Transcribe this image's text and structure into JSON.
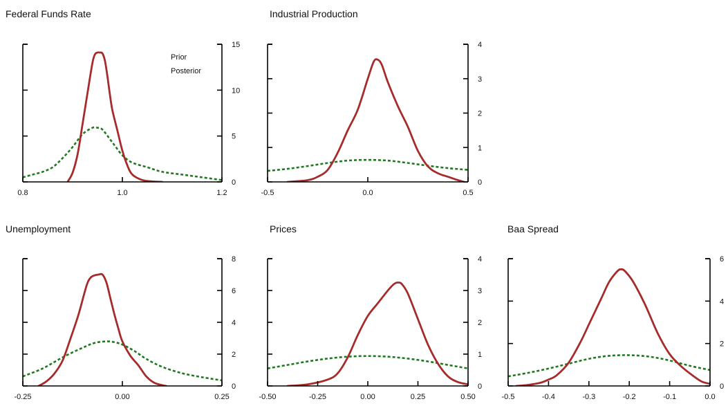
{
  "colors": {
    "prior": "#1f7a1f",
    "posterior": "#a62b2b",
    "axis": "#000000"
  },
  "legend": {
    "prior": "Prior",
    "posterior": "Posterior"
  },
  "chart_data": [
    {
      "type": "line",
      "title": "Federal Funds Rate",
      "xlim": [
        0.8,
        1.2
      ],
      "ylim": [
        0,
        15
      ],
      "xticks": [
        0.8,
        1.0,
        1.2
      ],
      "xtick_labels": [
        "0.8",
        "1.0",
        "1.2"
      ],
      "yticks": [
        0,
        5,
        10,
        15
      ],
      "ytick_labels": [
        "0",
        "5",
        "10",
        "15"
      ],
      "legend": "top-right",
      "series": [
        {
          "name": "Prior",
          "style": "dashed",
          "x": [
            0.8,
            0.82,
            0.84,
            0.86,
            0.88,
            0.9,
            0.92,
            0.94,
            0.95,
            0.96,
            0.98,
            1.0,
            1.02,
            1.05,
            1.08,
            1.12,
            1.16,
            1.2
          ],
          "y": [
            0.5,
            0.8,
            1.1,
            1.6,
            2.6,
            3.8,
            5.2,
            5.9,
            5.9,
            5.7,
            4.3,
            2.9,
            2.1,
            1.6,
            1.1,
            0.8,
            0.5,
            0.2
          ]
        },
        {
          "name": "Posterior",
          "style": "solid",
          "x": [
            0.89,
            0.9,
            0.91,
            0.92,
            0.93,
            0.94,
            0.945,
            0.95,
            0.955,
            0.96,
            0.965,
            0.97,
            0.975,
            0.98,
            0.99,
            1.0,
            1.01,
            1.02,
            1.04,
            1.06,
            1.08
          ],
          "y": [
            0.0,
            1.0,
            3.0,
            6.3,
            9.7,
            13.0,
            13.9,
            14.1,
            14.1,
            14.0,
            13.2,
            11.5,
            9.5,
            7.8,
            5.6,
            3.4,
            1.8,
            0.8,
            0.2,
            0.05,
            0.0
          ]
        }
      ]
    },
    {
      "type": "line",
      "title": "Industrial Production",
      "xlim": [
        -0.5,
        0.5
      ],
      "ylim": [
        0,
        4
      ],
      "xticks": [
        -0.5,
        0.0,
        0.5
      ],
      "xtick_labels": [
        "-0.5",
        "0.0",
        "0.5"
      ],
      "yticks": [
        0,
        1,
        2,
        3,
        4
      ],
      "ytick_labels": [
        "0",
        "1",
        "2",
        "3",
        "4"
      ],
      "series": [
        {
          "name": "Prior",
          "style": "dashed",
          "x": [
            -0.5,
            -0.4,
            -0.3,
            -0.2,
            -0.1,
            0.0,
            0.1,
            0.2,
            0.3,
            0.4,
            0.5
          ],
          "y": [
            0.32,
            0.38,
            0.46,
            0.55,
            0.62,
            0.64,
            0.62,
            0.55,
            0.47,
            0.4,
            0.35
          ]
        },
        {
          "name": "Posterior",
          "style": "solid",
          "x": [
            -0.4,
            -0.3,
            -0.25,
            -0.2,
            -0.15,
            -0.1,
            -0.05,
            0.0,
            0.03,
            0.05,
            0.07,
            0.1,
            0.15,
            0.2,
            0.25,
            0.3,
            0.35,
            0.4,
            0.45,
            0.48
          ],
          "y": [
            0.0,
            0.05,
            0.15,
            0.35,
            0.85,
            1.5,
            2.1,
            3.0,
            3.5,
            3.55,
            3.4,
            2.9,
            2.2,
            1.6,
            0.9,
            0.45,
            0.25,
            0.15,
            0.05,
            0.0
          ]
        }
      ]
    },
    {
      "type": "line",
      "title": "Unemployment",
      "xlim": [
        -0.25,
        0.25
      ],
      "ylim": [
        0,
        8
      ],
      "xticks": [
        -0.25,
        0.0,
        0.25
      ],
      "xtick_labels": [
        "-0.25",
        "0.00",
        "0.25"
      ],
      "yticks": [
        0,
        2,
        4,
        6,
        8
      ],
      "ytick_labels": [
        "0",
        "2",
        "4",
        "6",
        "8"
      ],
      "series": [
        {
          "name": "Prior",
          "style": "dashed",
          "x": [
            -0.25,
            -0.2,
            -0.15,
            -0.1,
            -0.07,
            -0.04,
            -0.02,
            0.0,
            0.03,
            0.06,
            0.1,
            0.15,
            0.2,
            0.25
          ],
          "y": [
            0.6,
            1.1,
            1.8,
            2.4,
            2.7,
            2.8,
            2.75,
            2.6,
            2.2,
            1.7,
            1.2,
            0.8,
            0.55,
            0.35
          ]
        },
        {
          "name": "Posterior",
          "style": "solid",
          "x": [
            -0.21,
            -0.19,
            -0.17,
            -0.15,
            -0.13,
            -0.11,
            -0.09,
            -0.08,
            -0.07,
            -0.06,
            -0.05,
            -0.04,
            -0.03,
            -0.02,
            -0.01,
            0.0,
            0.02,
            0.04,
            0.06,
            0.08,
            0.1,
            0.11
          ],
          "y": [
            0.0,
            0.3,
            0.8,
            1.6,
            3.0,
            4.5,
            6.3,
            6.8,
            6.95,
            7.0,
            7.0,
            6.5,
            5.5,
            4.5,
            3.6,
            2.8,
            1.9,
            1.3,
            0.6,
            0.2,
            0.05,
            0.0
          ]
        }
      ]
    },
    {
      "type": "line",
      "title": "Prices",
      "xlim": [
        -0.5,
        0.5
      ],
      "ylim": [
        0,
        4
      ],
      "xticks": [
        -0.5,
        -0.25,
        0.0,
        0.25,
        0.5
      ],
      "xtick_labels": [
        "-0.50",
        "-0.25",
        "0.00",
        "0.25",
        "0.50"
      ],
      "yticks": [
        0,
        1,
        2,
        3,
        4
      ],
      "ytick_labels": [
        "0",
        "1",
        "2",
        "3",
        "4"
      ],
      "series": [
        {
          "name": "Prior",
          "style": "dashed",
          "x": [
            -0.5,
            -0.4,
            -0.3,
            -0.2,
            -0.1,
            0.0,
            0.1,
            0.2,
            0.3,
            0.4,
            0.5
          ],
          "y": [
            0.55,
            0.66,
            0.77,
            0.86,
            0.92,
            0.94,
            0.92,
            0.86,
            0.77,
            0.66,
            0.55
          ]
        },
        {
          "name": "Posterior",
          "style": "solid",
          "x": [
            -0.4,
            -0.3,
            -0.2,
            -0.15,
            -0.1,
            -0.05,
            0.0,
            0.05,
            0.1,
            0.13,
            0.15,
            0.17,
            0.2,
            0.25,
            0.3,
            0.35,
            0.4,
            0.45,
            0.5
          ],
          "y": [
            0.0,
            0.05,
            0.2,
            0.4,
            0.9,
            1.6,
            2.2,
            2.6,
            3.0,
            3.2,
            3.25,
            3.2,
            2.9,
            2.1,
            1.3,
            0.7,
            0.3,
            0.12,
            0.05
          ]
        }
      ]
    },
    {
      "type": "line",
      "title": "Baa Spread",
      "xlim": [
        -0.5,
        0.0
      ],
      "ylim": [
        0,
        6
      ],
      "xticks": [
        -0.5,
        -0.4,
        -0.3,
        -0.2,
        -0.1,
        0.0
      ],
      "xtick_labels": [
        "-0.5",
        "-0.4",
        "-0.3",
        "-0.2",
        "-0.1",
        "0.0"
      ],
      "yticks": [
        0,
        2,
        4,
        6
      ],
      "ytick_labels": [
        "0",
        "2",
        "4",
        "6"
      ],
      "series": [
        {
          "name": "Prior",
          "style": "dashed",
          "x": [
            -0.5,
            -0.45,
            -0.4,
            -0.35,
            -0.3,
            -0.25,
            -0.2,
            -0.15,
            -0.1,
            -0.05,
            0.0
          ],
          "y": [
            0.45,
            0.62,
            0.82,
            1.05,
            1.28,
            1.42,
            1.45,
            1.38,
            1.2,
            0.95,
            0.75
          ]
        },
        {
          "name": "Posterior",
          "style": "solid",
          "x": [
            -0.48,
            -0.45,
            -0.42,
            -0.4,
            -0.38,
            -0.35,
            -0.32,
            -0.3,
            -0.27,
            -0.25,
            -0.23,
            -0.22,
            -0.21,
            -0.19,
            -0.16,
            -0.13,
            -0.1,
            -0.07,
            -0.04,
            -0.02,
            0.0
          ],
          "y": [
            0.0,
            0.05,
            0.15,
            0.3,
            0.5,
            1.1,
            2.1,
            2.9,
            4.1,
            4.9,
            5.4,
            5.5,
            5.4,
            4.9,
            3.8,
            2.5,
            1.5,
            0.9,
            0.45,
            0.2,
            0.1
          ]
        }
      ]
    }
  ]
}
